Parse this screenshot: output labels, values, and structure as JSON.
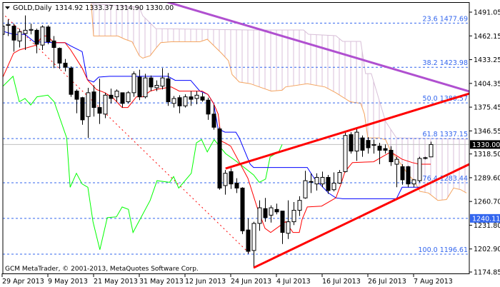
{
  "header": {
    "symbol_timeframe": "GOLD,Daily",
    "ohlc_text": "1314.92 1333.37 1314.90 1330.00"
  },
  "footer": {
    "copyright": "GCM MetaTrader, © 2001-2013, MetaQuotes Software Corp."
  },
  "colors": {
    "bull_body": "#ffffff",
    "bear_body": "#000000",
    "tenkan": "#ff0000",
    "kijun": "#0000ff",
    "chikou": "#00ff00",
    "span_a": "#f4a460",
    "span_b": "#d8bfd8",
    "fib": "#3366ee",
    "trend_red": "#ff0000",
    "trend_purple": "#b050d0",
    "price_label_bg": "#000000",
    "hline_label_bg": "#3366ee"
  },
  "chart_data": {
    "type": "candlestick",
    "title": "GOLD,Daily",
    "grid": false,
    "ylim": [
      1174.85,
      1505
    ],
    "y_ticks": [
      "1491.05",
      "1462.15",
      "1433.25",
      "1404.35",
      "1375.45",
      "1346.55",
      "1318.50",
      "1289.60",
      "1260.70",
      "1231.80",
      "1202.90",
      "1174.85"
    ],
    "x_ticks": [
      {
        "bar": 0,
        "label": "29 Apr 2013"
      },
      {
        "bar": 8,
        "label": "9 May 2013"
      },
      {
        "bar": 16,
        "label": "21 May 2013"
      },
      {
        "bar": 24,
        "label": "31 May 2013"
      },
      {
        "bar": 32,
        "label": "12 Jun 2013"
      },
      {
        "bar": 40,
        "label": "24 Jun 2013"
      },
      {
        "bar": 48,
        "label": "4 Jul 2013"
      },
      {
        "bar": 56,
        "label": "16 Jul 2013"
      },
      {
        "bar": 64,
        "label": "26 Jul 2013"
      },
      {
        "bar": 72,
        "label": "7 Aug 2013"
      }
    ],
    "ohlc": [
      [
        1464,
        1477,
        1461,
        1474
      ],
      [
        1475,
        1482,
        1462,
        1476
      ],
      [
        1474,
        1477,
        1443,
        1457
      ],
      [
        1456,
        1471,
        1448,
        1467
      ],
      [
        1465,
        1487,
        1445,
        1469
      ],
      [
        1469,
        1477,
        1464,
        1470
      ],
      [
        1469,
        1471,
        1441,
        1452
      ],
      [
        1451,
        1475,
        1445,
        1473
      ],
      [
        1473,
        1475,
        1452,
        1455
      ],
      [
        1456,
        1462,
        1423,
        1448
      ],
      [
        1447,
        1448,
        1422,
        1429
      ],
      [
        1429,
        1434,
        1419,
        1424
      ],
      [
        1423,
        1425,
        1388,
        1391
      ],
      [
        1395,
        1397,
        1368,
        1385
      ],
      [
        1387,
        1388,
        1354,
        1360
      ],
      [
        1364,
        1399,
        1338,
        1393
      ],
      [
        1394,
        1402,
        1364,
        1375
      ],
      [
        1375,
        1410,
        1355,
        1368
      ],
      [
        1367,
        1393,
        1362,
        1390
      ],
      [
        1390,
        1398,
        1380,
        1386
      ],
      [
        1388,
        1397,
        1382,
        1395
      ],
      [
        1393,
        1393,
        1375,
        1380
      ],
      [
        1382,
        1395,
        1380,
        1393
      ],
      [
        1393,
        1419,
        1388,
        1416
      ],
      [
        1412,
        1421,
        1384,
        1388
      ],
      [
        1388,
        1416,
        1386,
        1411
      ],
      [
        1411,
        1414,
        1395,
        1400
      ],
      [
        1399,
        1408,
        1395,
        1402
      ],
      [
        1401,
        1423,
        1397,
        1411
      ],
      [
        1410,
        1417,
        1377,
        1382
      ],
      [
        1380,
        1389,
        1375,
        1386
      ],
      [
        1387,
        1390,
        1368,
        1377
      ],
      [
        1377,
        1391,
        1375,
        1388
      ],
      [
        1388,
        1395,
        1377,
        1385
      ],
      [
        1386,
        1395,
        1379,
        1390
      ],
      [
        1388,
        1393,
        1382,
        1384
      ],
      [
        1384,
        1387,
        1360,
        1367
      ],
      [
        1367,
        1378,
        1348,
        1351
      ],
      [
        1349,
        1351,
        1275,
        1277
      ],
      [
        1280,
        1299,
        1269,
        1295
      ],
      [
        1297,
        1301,
        1276,
        1282
      ],
      [
        1283,
        1289,
        1271,
        1277
      ],
      [
        1277,
        1278,
        1221,
        1225
      ],
      [
        1226,
        1240,
        1197,
        1200
      ],
      [
        1201,
        1236,
        1180,
        1234
      ],
      [
        1234,
        1262,
        1225,
        1253
      ],
      [
        1252,
        1265,
        1236,
        1241
      ],
      [
        1244,
        1256,
        1235,
        1253
      ],
      [
        1251,
        1258,
        1245,
        1248
      ],
      [
        1249,
        1249,
        1209,
        1223
      ],
      [
        1222,
        1262,
        1215,
        1236
      ],
      [
        1236,
        1260,
        1232,
        1250
      ],
      [
        1250,
        1267,
        1243,
        1262
      ],
      [
        1265,
        1298,
        1264,
        1286
      ],
      [
        1285,
        1295,
        1271,
        1285
      ],
      [
        1282,
        1295,
        1274,
        1290
      ],
      [
        1282,
        1297,
        1278,
        1290
      ],
      [
        1290,
        1293,
        1270,
        1274
      ],
      [
        1275,
        1296,
        1273,
        1283
      ],
      [
        1283,
        1299,
        1282,
        1296
      ],
      [
        1297,
        1345,
        1296,
        1341
      ],
      [
        1342,
        1345,
        1319,
        1322
      ],
      [
        1322,
        1349,
        1310,
        1345
      ],
      [
        1338,
        1341,
        1315,
        1323
      ],
      [
        1335,
        1339,
        1319,
        1326
      ],
      [
        1329,
        1336,
        1319,
        1330
      ],
      [
        1328,
        1332,
        1306,
        1323
      ],
      [
        1325,
        1330,
        1319,
        1323
      ],
      [
        1323,
        1328,
        1304,
        1309
      ],
      [
        1306,
        1315,
        1278,
        1312
      ],
      [
        1303,
        1306,
        1281,
        1287
      ],
      [
        1303,
        1304,
        1278,
        1282
      ],
      [
        1282,
        1288,
        1278,
        1287
      ],
      [
        1286,
        1315,
        1284,
        1313
      ],
      [
        1313,
        1315,
        1312,
        1314
      ],
      [
        1314.92,
        1333.37,
        1314.9,
        1330.0
      ]
    ],
    "tenkan_sen": [
      [
        0,
        1410
      ],
      [
        2,
        1441
      ],
      [
        3,
        1445
      ],
      [
        6,
        1451
      ],
      [
        7,
        1462
      ],
      [
        8,
        1462
      ],
      [
        9,
        1454
      ],
      [
        11,
        1454
      ],
      [
        12,
        1445
      ],
      [
        14,
        1423
      ],
      [
        15,
        1408
      ],
      [
        16.5,
        1397
      ],
      [
        18,
        1393
      ],
      [
        19.5,
        1386
      ],
      [
        21,
        1375
      ],
      [
        22,
        1375
      ],
      [
        23.5,
        1388
      ],
      [
        24.6,
        1388
      ],
      [
        25.9,
        1395
      ],
      [
        27,
        1397
      ],
      [
        29.6,
        1400
      ],
      [
        31,
        1395
      ],
      [
        35,
        1395
      ],
      [
        36,
        1391
      ],
      [
        37,
        1380
      ],
      [
        37.8,
        1367
      ],
      [
        38.4,
        1334
      ],
      [
        39,
        1332
      ],
      [
        40,
        1328
      ],
      [
        43,
        1289
      ],
      [
        44.6,
        1254
      ],
      [
        46,
        1228
      ],
      [
        47,
        1223
      ],
      [
        49.6,
        1236
      ],
      [
        50.9,
        1223
      ],
      [
        52,
        1223
      ],
      [
        52.5,
        1239
      ],
      [
        53.4,
        1254
      ],
      [
        55.9,
        1255
      ],
      [
        58.4,
        1265
      ],
      [
        59.3,
        1282
      ],
      [
        60,
        1297
      ],
      [
        61.3,
        1308
      ],
      [
        65,
        1309
      ],
      [
        67,
        1317
      ],
      [
        68,
        1321
      ],
      [
        70,
        1312
      ],
      [
        71.75,
        1308
      ],
      [
        73,
        1306
      ],
      [
        75,
        1306
      ]
    ],
    "kijun_sen": [
      [
        0,
        1468
      ],
      [
        2,
        1464
      ],
      [
        4,
        1464
      ],
      [
        5.6,
        1455
      ],
      [
        9,
        1454
      ],
      [
        11,
        1454
      ],
      [
        12,
        1450
      ],
      [
        14,
        1443
      ],
      [
        14.9,
        1409
      ],
      [
        16,
        1406
      ],
      [
        16.9,
        1412
      ],
      [
        18.8,
        1413
      ],
      [
        29,
        1413
      ],
      [
        30.3,
        1408
      ],
      [
        33,
        1408
      ],
      [
        34.6,
        1395
      ],
      [
        36,
        1391
      ],
      [
        37,
        1380
      ],
      [
        37.8,
        1349
      ],
      [
        39,
        1345
      ],
      [
        40.9,
        1345
      ],
      [
        41.5,
        1338
      ],
      [
        43.4,
        1306
      ],
      [
        44,
        1302
      ],
      [
        53.4,
        1302
      ],
      [
        54.6,
        1289
      ],
      [
        57.1,
        1271
      ],
      [
        58.4,
        1265
      ],
      [
        59.6,
        1264
      ],
      [
        69,
        1264
      ],
      [
        70,
        1278
      ],
      [
        73.5,
        1278
      ]
    ],
    "chikou_span": [
      [
        0,
        1400
      ],
      [
        1.9,
        1413
      ],
      [
        3,
        1382
      ],
      [
        4,
        1386
      ],
      [
        5,
        1378
      ],
      [
        6.1,
        1388
      ],
      [
        8,
        1390
      ],
      [
        9.1,
        1382
      ],
      [
        11.3,
        1338
      ],
      [
        11.9,
        1278
      ],
      [
        13,
        1295
      ],
      [
        14,
        1282
      ],
      [
        15,
        1278
      ],
      [
        15.9,
        1236
      ],
      [
        17.1,
        1202
      ],
      [
        18.4,
        1241
      ],
      [
        20,
        1242
      ],
      [
        21,
        1254
      ],
      [
        22.1,
        1251
      ],
      [
        22.9,
        1223
      ],
      [
        25.9,
        1262
      ],
      [
        27.1,
        1286
      ],
      [
        29.3,
        1284
      ],
      [
        30,
        1291
      ],
      [
        30.9,
        1277
      ],
      [
        33.1,
        1295
      ],
      [
        34,
        1332
      ],
      [
        34.9,
        1336
      ],
      [
        35.9,
        1321
      ],
      [
        37.1,
        1336
      ],
      [
        39.1,
        1319
      ],
      [
        40.9,
        1310
      ],
      [
        44,
        1293
      ],
      [
        45,
        1284
      ],
      [
        46.1,
        1288
      ],
      [
        46.9,
        1315
      ],
      [
        48.4,
        1321
      ],
      [
        49,
        1330
      ]
    ],
    "senkou_span_a": [
      [
        15.6,
        1501
      ],
      [
        16,
        1462
      ],
      [
        20.25,
        1462
      ],
      [
        21.5,
        1458
      ],
      [
        22.75,
        1455
      ],
      [
        24,
        1438
      ],
      [
        24.6,
        1435
      ],
      [
        25.9,
        1438
      ],
      [
        26.9,
        1447
      ],
      [
        27.75,
        1454
      ],
      [
        29.6,
        1455
      ],
      [
        34.6,
        1455
      ],
      [
        35.9,
        1458
      ],
      [
        38.4,
        1441
      ],
      [
        39.6,
        1432
      ],
      [
        40.25,
        1415
      ],
      [
        41.5,
        1406
      ],
      [
        43.4,
        1404
      ],
      [
        47.1,
        1395
      ],
      [
        49,
        1396
      ],
      [
        49.6,
        1400
      ],
      [
        53.4,
        1404
      ],
      [
        56.5,
        1400
      ],
      [
        58.4,
        1393
      ],
      [
        60.9,
        1382
      ],
      [
        62.75,
        1380
      ],
      [
        63.4,
        1367
      ],
      [
        64,
        1338
      ],
      [
        65.9,
        1338
      ],
      [
        67.1,
        1336
      ],
      [
        68,
        1322
      ],
      [
        69.6,
        1308
      ],
      [
        71.1,
        1293
      ],
      [
        72.1,
        1286
      ],
      [
        73.1,
        1273
      ],
      [
        74.6,
        1271
      ],
      [
        76.25,
        1262
      ],
      [
        77.75,
        1263
      ],
      [
        79,
        1277
      ],
      [
        80.25,
        1275
      ],
      [
        81.25,
        1271
      ]
    ],
    "senkou_span_b": [
      [
        15.6,
        1501.5
      ],
      [
        24,
        1497
      ],
      [
        24.6,
        1486.7
      ],
      [
        26.9,
        1471
      ],
      [
        43.4,
        1469.3
      ],
      [
        52.75,
        1469.3
      ],
      [
        53.6,
        1464.1
      ],
      [
        58.4,
        1462.4
      ],
      [
        59.6,
        1455.4
      ],
      [
        62.75,
        1455.4
      ],
      [
        63.6,
        1416.3
      ],
      [
        64.6,
        1416.3
      ],
      [
        67.1,
        1358.1
      ],
      [
        69,
        1338.1
      ],
      [
        81.5,
        1336.4
      ]
    ],
    "fibonacci": {
      "anchor_high": [
        0,
        1490
      ],
      "anchor_low": [
        43.4,
        1196.61
      ],
      "levels": [
        {
          "label": "23.6 1477.69",
          "price": 1477.69
        },
        {
          "label": "38.2 1423.98",
          "price": 1423.98
        },
        {
          "label": "50.0 1380.57",
          "price": 1380.57
        },
        {
          "label": "61.8 1337.15",
          "price": 1337.15
        },
        {
          "label": "76.4 1283.44",
          "price": 1283.44
        },
        {
          "label": "100.0 1196.61",
          "price": 1196.61
        }
      ]
    },
    "trendlines": [
      {
        "color": "purple",
        "from": [
          28.6,
          1504
        ],
        "to": [
          81.75,
          1394.6
        ]
      },
      {
        "color": "red",
        "from": [
          39.1,
          1300.8
        ],
        "to": [
          81.75,
          1392
        ]
      },
      {
        "color": "red",
        "from": [
          44,
          1180
        ],
        "to": [
          81.75,
          1306
        ]
      }
    ],
    "horizontal_line": {
      "price": 1240.11,
      "label": "1240.11"
    },
    "current_price": {
      "price": 1330.0,
      "label": "1330.00"
    }
  }
}
